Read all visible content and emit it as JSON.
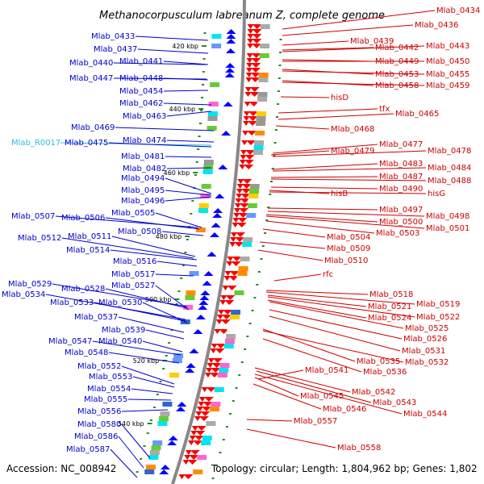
{
  "title": "Methanocorpusculum labreanum Z, complete genome",
  "footer": {
    "accession": "Accession: NC_008942",
    "topology": "Topology: circular; Length: 1,804,962 bp; Genes: 1,802"
  },
  "colors": {
    "left_label": "#0000cc",
    "right_label": "#cc0000",
    "rna_label": "#33bbdd",
    "backbone": "#888888",
    "tick": "#228b22"
  },
  "kbp_ticks": [
    "420 kbp",
    "440 kbp",
    "460 kbp",
    "480 kbp",
    "500 kbp",
    "520 kbp",
    "540 kbp"
  ],
  "left_labels": [
    "Mlab_0433",
    "Mlab_0437",
    "Mlab_0440",
    "Mlab_0441",
    "Mlab_0447",
    "Mlab_0448",
    "Mlab_0454",
    "Mlab_0462",
    "Mlab_0463",
    "Mlab_0469",
    "Mlab_R0017",
    "Mlab_0475",
    "Mlab_0474",
    "Mlab_0481",
    "Mlab_0482",
    "Mlab_0494",
    "Mlab_0495",
    "Mlab_0496",
    "Mlab_0507",
    "Mlab_0506",
    "Mlab_0505",
    "Mlab_0508",
    "Mlab_0512",
    "Mlab_0511",
    "Mlab_0514",
    "Mlab_0516",
    "Mlab_0517",
    "Mlab_0529",
    "Mlab_0528",
    "Mlab_0527",
    "Mlab_0534",
    "Mlab_0533",
    "Mlab_0530",
    "Mlab_0537",
    "Mlab_0539",
    "Mlab_0547",
    "Mlab_0540",
    "Mlab_0548",
    "Mlab_0552",
    "Mlab_0553",
    "Mlab_0554",
    "Mlab_0555",
    "Mlab_0556",
    "Mlab_0580",
    "Mlab_0586",
    "Mlab_0587"
  ],
  "right_labels": [
    "Mlab_0434",
    "Mlab_0436",
    "Mlab_0439",
    "Mlab_0442",
    "Mlab_0443",
    "Mlab_0449",
    "Mlab_0450",
    "Mlab_0453",
    "Mlab_0455",
    "Mlab_0458",
    "Mlab_0459",
    "hisD",
    "tfx",
    "Mlab_0465",
    "Mlab_0468",
    "Mlab_0477",
    "Mlab_0479",
    "Mlab_0478",
    "Mlab_0483",
    "Mlab_0484",
    "Mlab_0487",
    "Mlab_0488",
    "Mlab_0490",
    "hisB",
    "hisG",
    "Mlab_0497",
    "Mlab_0498",
    "Mlab_0500",
    "Mlab_0501",
    "Mlab_0503",
    "Mlab_0504",
    "Mlab_0509",
    "Mlab_0510",
    "rfc",
    "Mlab_0518",
    "Mlab_0519",
    "Mlab_0521",
    "Mlab_0522",
    "Mlab_0524",
    "Mlab_0525",
    "Mlab_0526",
    "Mlab_0531",
    "Mlab_0535",
    "Mlab_0532",
    "Mlab_0541",
    "Mlab_0536",
    "Mlab_0542",
    "Mlab_0545",
    "Mlab_0543",
    "Mlab_0546",
    "Mlab_0544",
    "Mlab_0557",
    "Mlab_0558"
  ]
}
